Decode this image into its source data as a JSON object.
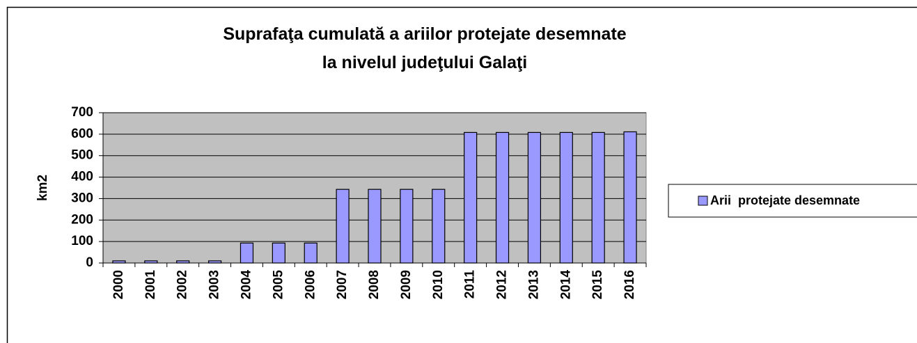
{
  "chart_data": {
    "type": "bar",
    "title": [
      "Suprafaţa cumulată a ariilor protejate desemnate",
      "la nivelul judeţului Galaţi"
    ],
    "y_label": "km2",
    "categories": [
      "2000",
      "2001",
      "2002",
      "2003",
      "2004",
      "2005",
      "2006",
      "2007",
      "2008",
      "2009",
      "2010",
      "2011",
      "2012",
      "2013",
      "2014",
      "2015",
      "2016"
    ],
    "series": [
      {
        "name": "Arii  protejate desemnate",
        "color": "#9999ff",
        "values": [
          10,
          10,
          10,
          10,
          93,
          93,
          93,
          343,
          343,
          343,
          343,
          608,
          608,
          608,
          608,
          608,
          611
        ]
      }
    ],
    "ylim": [
      0,
      700
    ],
    "yticks": [
      0,
      100,
      200,
      300,
      400,
      500,
      600,
      700
    ],
    "grid": true,
    "plot_background": "#c0c0c0",
    "legend": "right"
  }
}
